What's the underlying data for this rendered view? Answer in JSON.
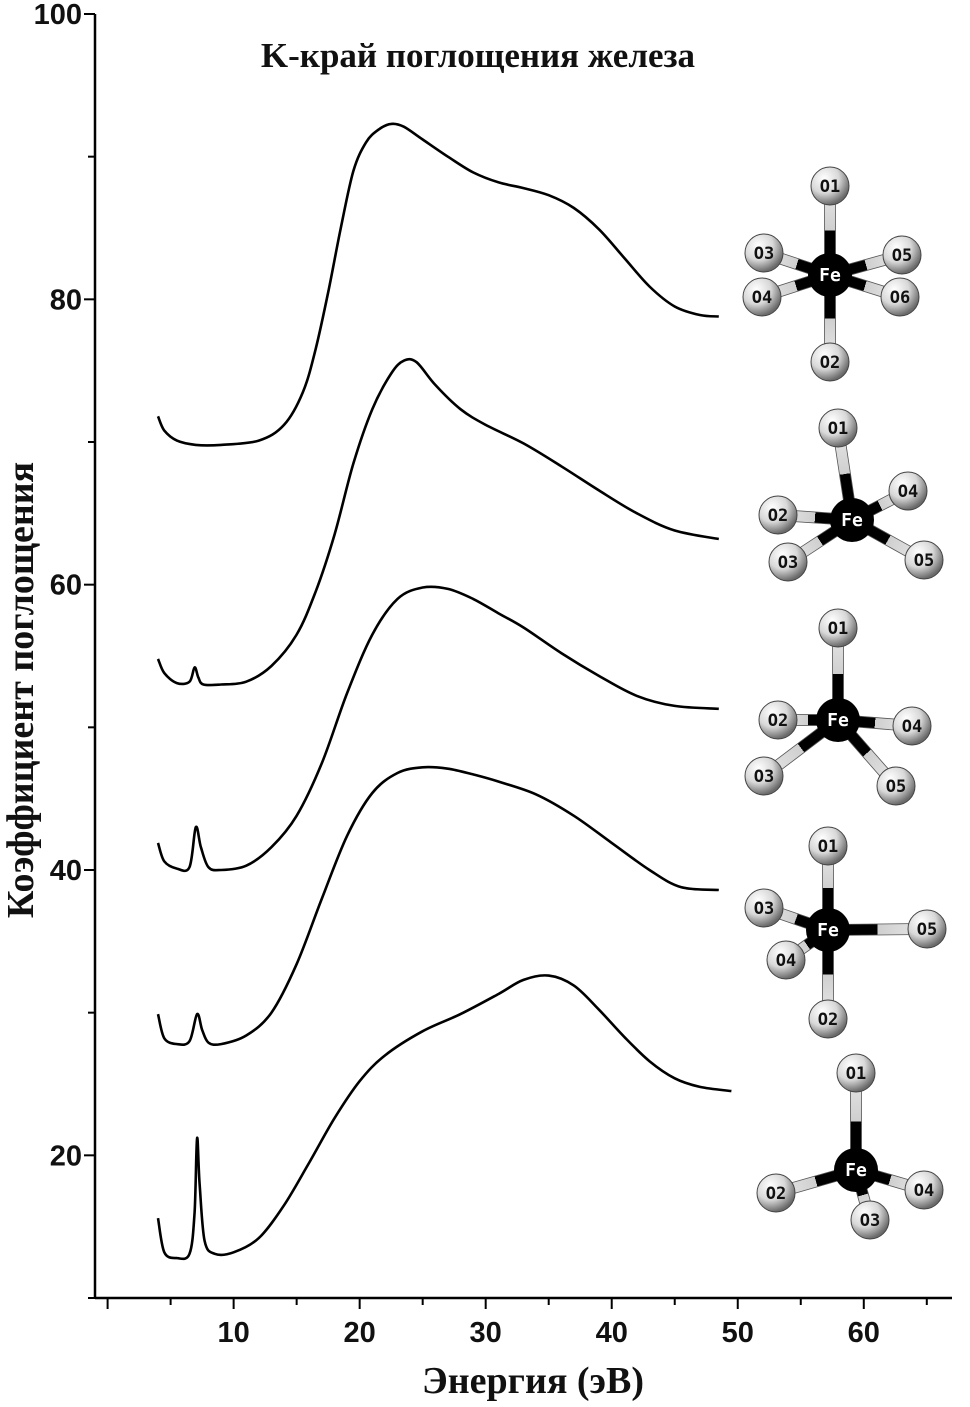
{
  "chart_data": {
    "type": "line",
    "title": "K-край поглощения железа",
    "xlabel": "Энергия (эВ)",
    "ylabel": "Коэффициент поглощения",
    "xlim": [
      -1,
      67
    ],
    "ylim": [
      10,
      100
    ],
    "xticks": [
      10,
      20,
      30,
      40,
      50,
      60
    ],
    "yticks": [
      20,
      40,
      60,
      80,
      100
    ],
    "grid": false,
    "series": [
      {
        "points": [
          [
            4,
            71.8
          ],
          [
            4.5,
            70.8
          ],
          [
            5.5,
            70.1
          ],
          [
            7,
            69.8
          ],
          [
            9,
            69.8
          ],
          [
            12,
            70.1
          ],
          [
            14,
            71.2
          ],
          [
            15.5,
            73.5
          ],
          [
            16.5,
            76.5
          ],
          [
            17.5,
            80.5
          ],
          [
            18.5,
            85
          ],
          [
            19.5,
            89
          ],
          [
            20.5,
            91
          ],
          [
            21.5,
            91.9
          ],
          [
            22.5,
            92.3
          ],
          [
            23.5,
            92.1
          ],
          [
            25,
            91.2
          ],
          [
            27,
            90
          ],
          [
            29,
            88.9
          ],
          [
            31,
            88.2
          ],
          [
            33,
            87.8
          ],
          [
            35,
            87.3
          ],
          [
            37,
            86.4
          ],
          [
            39,
            84.9
          ],
          [
            41,
            82.9
          ],
          [
            43,
            80.9
          ],
          [
            45,
            79.5
          ],
          [
            47,
            78.9
          ],
          [
            48.5,
            78.8
          ]
        ]
      },
      {
        "points": [
          [
            4,
            54.8
          ],
          [
            4.5,
            53.8
          ],
          [
            5.5,
            53.1
          ],
          [
            6.5,
            53.2
          ],
          [
            6.9,
            54.2
          ],
          [
            7.2,
            53.5
          ],
          [
            7.6,
            53
          ],
          [
            9,
            53
          ],
          [
            11,
            53.2
          ],
          [
            13,
            54.3
          ],
          [
            15,
            56.5
          ],
          [
            16.5,
            59.5
          ],
          [
            18,
            63.5
          ],
          [
            19.5,
            68.5
          ],
          [
            21,
            72.3
          ],
          [
            22.5,
            74.8
          ],
          [
            23.5,
            75.7
          ],
          [
            24.5,
            75.6
          ],
          [
            26,
            74
          ],
          [
            28,
            72.3
          ],
          [
            30,
            71.2
          ],
          [
            33,
            69.9
          ],
          [
            36,
            68.3
          ],
          [
            39,
            66.6
          ],
          [
            42,
            65
          ],
          [
            45,
            63.8
          ],
          [
            48.5,
            63.2
          ]
        ]
      },
      {
        "points": [
          [
            4,
            41.9
          ],
          [
            4.5,
            40.6
          ],
          [
            5.5,
            40.1
          ],
          [
            6.5,
            40.2
          ],
          [
            7,
            43
          ],
          [
            7.4,
            41.6
          ],
          [
            8,
            40.2
          ],
          [
            9,
            40
          ],
          [
            11,
            40.3
          ],
          [
            13,
            41.6
          ],
          [
            15,
            43.8
          ],
          [
            17,
            47.5
          ],
          [
            19,
            52.4
          ],
          [
            21,
            56.5
          ],
          [
            23,
            59
          ],
          [
            25,
            59.8
          ],
          [
            27,
            59.7
          ],
          [
            29,
            59
          ],
          [
            31,
            58
          ],
          [
            33,
            57
          ],
          [
            36,
            55.2
          ],
          [
            39,
            53.6
          ],
          [
            42,
            52.2
          ],
          [
            45,
            51.5
          ],
          [
            48.5,
            51.3
          ]
        ]
      },
      {
        "points": [
          [
            4,
            29.9
          ],
          [
            4.5,
            28.2
          ],
          [
            5.5,
            27.8
          ],
          [
            6.5,
            28
          ],
          [
            7.1,
            29.9
          ],
          [
            7.5,
            28.8
          ],
          [
            8,
            27.9
          ],
          [
            9,
            27.8
          ],
          [
            11,
            28.4
          ],
          [
            13,
            30
          ],
          [
            15,
            33.4
          ],
          [
            17,
            38
          ],
          [
            19,
            42.4
          ],
          [
            21,
            45.4
          ],
          [
            23,
            46.8
          ],
          [
            25,
            47.2
          ],
          [
            27,
            47.1
          ],
          [
            29,
            46.7
          ],
          [
            31,
            46.2
          ],
          [
            34,
            45.3
          ],
          [
            37,
            43.8
          ],
          [
            40,
            41.9
          ],
          [
            43,
            40
          ],
          [
            45.5,
            38.8
          ],
          [
            48.5,
            38.6
          ]
        ]
      },
      {
        "points": [
          [
            4,
            15.6
          ],
          [
            4.5,
            13.2
          ],
          [
            5.5,
            12.8
          ],
          [
            6.5,
            13.1
          ],
          [
            6.9,
            16
          ],
          [
            7.1,
            21.2
          ],
          [
            7.3,
            18
          ],
          [
            7.7,
            14
          ],
          [
            8.5,
            13.1
          ],
          [
            10,
            13.2
          ],
          [
            12,
            14.2
          ],
          [
            14,
            16.5
          ],
          [
            16,
            19.5
          ],
          [
            18,
            22.6
          ],
          [
            20,
            25.2
          ],
          [
            22,
            27
          ],
          [
            25,
            28.7
          ],
          [
            28,
            29.9
          ],
          [
            31,
            31.3
          ],
          [
            33,
            32.3
          ],
          [
            35,
            32.6
          ],
          [
            37,
            31.9
          ],
          [
            39,
            30.2
          ],
          [
            41,
            28.3
          ],
          [
            43,
            26.6
          ],
          [
            45,
            25.4
          ],
          [
            47,
            24.8
          ],
          [
            49.5,
            24.5
          ]
        ]
      }
    ]
  },
  "molecules": [
    {
      "center": "Fe",
      "ligands": [
        "O1",
        "O2",
        "O3",
        "O4",
        "O5",
        "O6"
      ]
    },
    {
      "center": "Fe",
      "ligands": [
        "O1",
        "O2",
        "O3",
        "O4",
        "O5"
      ]
    },
    {
      "center": "Fe",
      "ligands": [
        "O1",
        "O2",
        "O3",
        "O4",
        "O5"
      ]
    },
    {
      "center": "Fe",
      "ligands": [
        "O1",
        "O2",
        "O3",
        "O4",
        "O5"
      ]
    },
    {
      "center": "Fe",
      "ligands": [
        "O1",
        "O2",
        "O3",
        "O4"
      ]
    }
  ]
}
